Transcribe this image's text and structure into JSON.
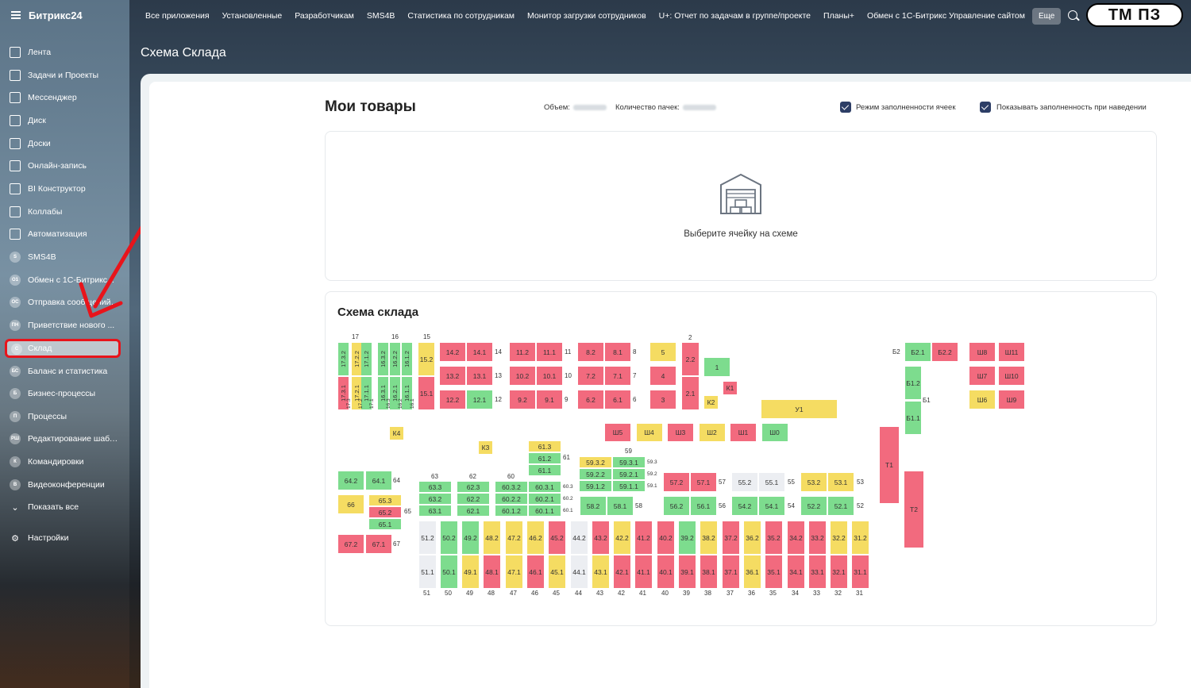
{
  "app": {
    "name": "Битрикс24",
    "page_title": "Схема Склада",
    "brand": "ТМ ПЗ"
  },
  "topbar": {
    "items": [
      "Все приложения",
      "Установленные",
      "Разработчикам",
      "SMS4B",
      "Статистика по сотрудникам",
      "Монитор загрузки сотрудников",
      "U+: Отчет по задачам в группе/проекте",
      "Планы+",
      "Обмен с 1С-Битрикс Управление сайтом"
    ],
    "more": "Еще"
  },
  "sidebar": {
    "items": [
      {
        "label": "Лента",
        "icon": "feed-icon"
      },
      {
        "label": "Задачи и Проекты",
        "icon": "tasks-icon"
      },
      {
        "label": "Мессенджер",
        "icon": "messenger-icon"
      },
      {
        "label": "Диск",
        "icon": "disk-icon"
      },
      {
        "label": "Доски",
        "icon": "boards-icon"
      },
      {
        "label": "Онлайн-запись",
        "icon": "calendar-icon"
      },
      {
        "label": "BI Конструктор",
        "icon": "chart-icon"
      },
      {
        "label": "Коллабы",
        "icon": "collab-icon"
      },
      {
        "label": "Автоматизация",
        "icon": "automation-icon"
      },
      {
        "label": "SMS4B",
        "icon": "S"
      },
      {
        "label": "Обмен с 1С-Битрикс...",
        "icon": "О1"
      },
      {
        "label": "Отправка сообщений ...",
        "icon": "ОС"
      },
      {
        "label": "Приветствие нового ...",
        "icon": "ПН"
      },
      {
        "label": "Склад",
        "icon": "С"
      },
      {
        "label": "Баланс и статистика",
        "icon": "БС"
      },
      {
        "label": "Бизнес-процессы",
        "icon": "Б"
      },
      {
        "label": "Процессы",
        "icon": "П"
      },
      {
        "label": "Редактирование шабл...",
        "icon": "РШ"
      },
      {
        "label": "Командировки",
        "icon": "К"
      },
      {
        "label": "Видеоконференции",
        "icon": "В"
      },
      {
        "label": "Показать все",
        "icon": "chevron-down-icon"
      },
      {
        "label": "Настройки",
        "icon": "gear-icon"
      }
    ]
  },
  "goods": {
    "title": "Мои товары",
    "volume_label": "Объем:",
    "packs_label": "Количество пачек:",
    "check1": "Режим заполненности ячеек",
    "check2": "Показывать заполненность при наведении",
    "select_prompt": "Выберите ячейку на схеме"
  },
  "scheme": {
    "title": "Схема склада",
    "colors": {
      "red": "#f26a7e",
      "green": "#7ddc8e",
      "yellow": "#f5dc62",
      "grey": "#eceef2"
    },
    "rows_top": [
      [
        "14.2",
        "14.1",
        "14"
      ],
      [
        "13.2",
        "13.1",
        "13"
      ],
      [
        "12.2",
        "12.1",
        "12"
      ],
      [
        "11.2",
        "11.1",
        "11"
      ],
      [
        "10.2",
        "10.1",
        "10"
      ],
      [
        "9.2",
        "9.1",
        "9"
      ],
      [
        "8.2",
        "8.1",
        "8"
      ],
      [
        "7.2",
        "7.1",
        "7"
      ],
      [
        "6.2",
        "6.1",
        "6"
      ]
    ],
    "left_col_labels": [
      "17",
      "16",
      "15",
      "2"
    ],
    "left_cells": [
      "17.3.2",
      "17.2.2",
      "17.1.2",
      "16.3.2",
      "16.2.2",
      "16.1.2",
      "17.3.1",
      "17.2.1",
      "17.1.1",
      "16.3.1",
      "16.2.1",
      "16.1.1",
      "15.2",
      "15.1"
    ],
    "left_bottom_labels": [
      "17.3",
      "17.2",
      "17.1",
      "16.3",
      "16.2",
      "16.1"
    ],
    "single": [
      "5",
      "4",
      "3",
      "2.2",
      "2.1",
      "1",
      "К1",
      "К2",
      "У1",
      "К4",
      "К3"
    ],
    "sh_row": [
      "Ш5",
      "Ш4",
      "Ш3",
      "Ш2",
      "Ш1",
      "Ш0"
    ],
    "b_block": [
      "Б2",
      "Б2.1",
      "Б2.2",
      "Б1.2",
      "Б1",
      "Б1.1"
    ],
    "sh_right": [
      "Ш8",
      "Ш11",
      "Ш7",
      "Ш10",
      "Ш6",
      "Ш9"
    ],
    "t_block": [
      "Т1",
      "Т2"
    ],
    "mid_groups": {
      "61": [
        "61.3",
        "61.2",
        "61.1"
      ],
      "59": [
        "59.3.2",
        "59.3.1",
        "59.2.2",
        "59.2.1",
        "59.1.2",
        "59.1.1",
        "59.3",
        "59.2",
        "59.1"
      ],
      "63": [
        "63.3",
        "63.2",
        "63.1"
      ],
      "62": [
        "62.3",
        "62.2",
        "62.1"
      ],
      "60": [
        "60.3.2",
        "60.3.1",
        "60.2.2",
        "60.2.1",
        "60.1.2",
        "60.1.1",
        "60.3",
        "60.2",
        "60.1"
      ],
      "64": [
        "64.2",
        "64.1"
      ],
      "66": [
        "66"
      ],
      "65": [
        "65.3",
        "65.2",
        "65.1"
      ],
      "67": [
        "67.2",
        "67.1"
      ],
      "58": [
        "58.2",
        "58.1"
      ],
      "57": [
        "57.2",
        "57.1"
      ],
      "56": [
        "56.2",
        "56.1"
      ],
      "55": [
        "55.2",
        "55.1"
      ],
      "54": [
        "54.2",
        "54.1"
      ],
      "53": [
        "53.2",
        "53.1"
      ],
      "52": [
        "52.2",
        "52.1"
      ]
    },
    "bottom_row": [
      "51",
      "50",
      "49",
      "48",
      "47",
      "46",
      "45",
      "44",
      "43",
      "42",
      "41",
      "40",
      "39",
      "38",
      "37",
      "36",
      "35",
      "34",
      "33",
      "32",
      "31"
    ]
  }
}
